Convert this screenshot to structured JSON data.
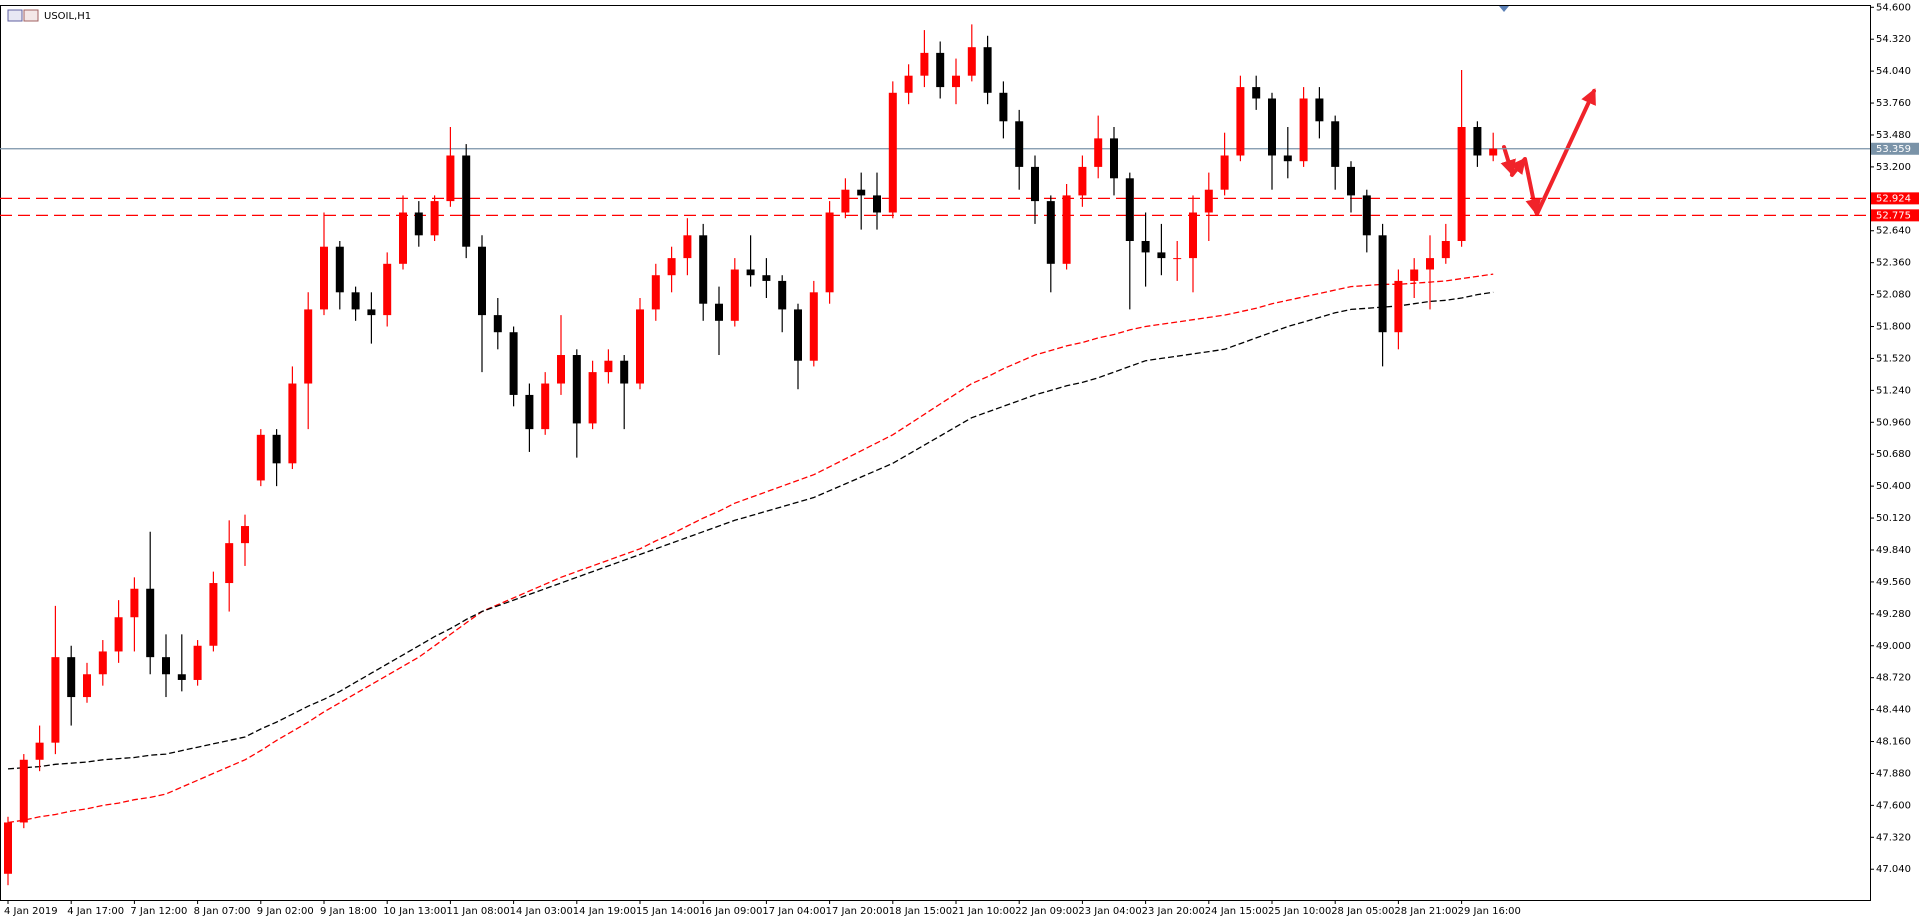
{
  "chart_data": {
    "type": "candlestick",
    "title": "USOIL,H1",
    "up_color": "#ff0000",
    "down_color": "#000000",
    "ylim": [
      46.77,
      54.62
    ],
    "yticks": [
      {
        "value": 47.04,
        "label": "47.040"
      },
      {
        "value": 47.32,
        "label": "47.320"
      },
      {
        "value": 47.6,
        "label": "47.600"
      },
      {
        "value": 47.88,
        "label": "47.880"
      },
      {
        "value": 48.16,
        "label": "48.160"
      },
      {
        "value": 48.44,
        "label": "48.440"
      },
      {
        "value": 48.72,
        "label": "48.720"
      },
      {
        "value": 49.0,
        "label": "49.000"
      },
      {
        "value": 49.28,
        "label": "49.280"
      },
      {
        "value": 49.56,
        "label": "49.560"
      },
      {
        "value": 49.84,
        "label": "49.840"
      },
      {
        "value": 50.12,
        "label": "50.120"
      },
      {
        "value": 50.4,
        "label": "50.400"
      },
      {
        "value": 50.68,
        "label": "50.680"
      },
      {
        "value": 50.96,
        "label": "50.960"
      },
      {
        "value": 51.24,
        "label": "51.240"
      },
      {
        "value": 51.52,
        "label": "51.520"
      },
      {
        "value": 51.8,
        "label": "51.800"
      },
      {
        "value": 52.08,
        "label": "52.080"
      },
      {
        "value": 52.36,
        "label": "52.360"
      },
      {
        "value": 52.64,
        "label": "52.640"
      },
      {
        "value": 52.92,
        "label": "52.920"
      },
      {
        "value": 53.2,
        "label": "53.200"
      },
      {
        "value": 53.48,
        "label": "53.480"
      },
      {
        "value": 53.76,
        "label": "53.760"
      },
      {
        "value": 54.04,
        "label": "54.040"
      },
      {
        "value": 54.32,
        "label": "54.320"
      },
      {
        "value": 54.6,
        "label": "54.600"
      }
    ],
    "categories": [
      "4 Jan 2019",
      null,
      null,
      null,
      "4 Jan 17:00",
      null,
      null,
      null,
      "7 Jan 12:00",
      null,
      null,
      null,
      "8 Jan 07:00",
      null,
      null,
      null,
      "9 Jan 02:00",
      null,
      null,
      null,
      "9 Jan 18:00",
      null,
      null,
      null,
      "10 Jan 13:00",
      null,
      null,
      null,
      "11 Jan 08:00",
      null,
      null,
      null,
      "14 Jan 03:00",
      null,
      null,
      null,
      "14 Jan 19:00",
      null,
      null,
      null,
      "15 Jan 14:00",
      null,
      null,
      null,
      "16 Jan 09:00",
      null,
      null,
      null,
      "17 Jan 04:00",
      null,
      null,
      null,
      "17 Jan 20:00",
      null,
      null,
      null,
      "18 Jan 15:00",
      null,
      null,
      null,
      "21 Jan 10:00",
      null,
      null,
      null,
      "22 Jan 09:00",
      null,
      null,
      null,
      "23 Jan 04:00",
      null,
      null,
      null,
      "23 Jan 20:00",
      null,
      null,
      null,
      "24 Jan 15:00",
      null,
      null,
      null,
      "25 Jan 10:00",
      null,
      null,
      null,
      "28 Jan 05:00",
      null,
      null,
      null,
      "28 Jan 21:00",
      null,
      null,
      null,
      "29 Jan 16:00",
      null,
      null
    ],
    "series": [
      {
        "open": [
          47.0,
          47.45,
          48.0,
          48.15,
          48.9,
          48.55,
          48.75,
          48.95,
          49.25,
          49.5,
          48.9,
          48.75,
          48.7,
          49.0,
          49.55,
          49.9,
          50.45,
          50.85,
          50.6,
          51.3,
          51.95,
          52.5,
          52.1,
          51.95,
          51.9,
          52.35,
          52.8,
          52.6,
          52.9,
          53.3,
          52.5,
          51.9,
          51.75,
          51.2,
          50.9,
          51.3,
          51.55,
          50.95,
          51.4,
          51.5,
          51.3,
          51.95,
          52.25,
          52.4,
          52.6,
          52.0,
          51.85,
          52.3,
          52.25,
          52.2,
          51.95,
          51.5,
          52.1,
          52.8,
          53.0,
          52.95,
          52.8,
          53.85,
          54.0,
          54.2,
          53.9,
          54.0,
          54.25,
          53.85,
          53.6,
          53.2,
          52.9,
          52.35,
          52.95,
          53.2,
          53.45,
          53.1,
          52.55,
          52.45,
          52.4,
          52.4,
          52.8,
          53.0,
          53.3,
          53.9,
          53.8,
          53.3,
          53.25,
          53.8,
          53.6,
          53.2,
          52.95,
          52.6,
          51.75,
          52.2,
          52.3,
          52.4,
          52.55,
          53.55,
          53.3
        ],
        "high": [
          47.5,
          48.05,
          48.3,
          49.35,
          49.0,
          48.85,
          49.05,
          49.4,
          49.6,
          50.0,
          49.1,
          49.1,
          49.05,
          49.65,
          50.1,
          50.15,
          50.9,
          50.9,
          51.45,
          52.1,
          52.8,
          52.55,
          52.15,
          52.1,
          52.45,
          52.95,
          52.9,
          52.95,
          53.55,
          53.4,
          52.6,
          52.05,
          51.8,
          51.3,
          51.4,
          51.9,
          51.6,
          51.5,
          51.6,
          51.55,
          52.05,
          52.35,
          52.5,
          52.75,
          52.7,
          52.15,
          52.4,
          52.6,
          52.4,
          52.25,
          52.0,
          52.2,
          52.9,
          53.1,
          53.15,
          53.15,
          53.95,
          54.1,
          54.4,
          54.3,
          54.15,
          54.45,
          54.35,
          53.95,
          53.7,
          53.3,
          52.95,
          53.05,
          53.3,
          53.65,
          53.55,
          53.15,
          52.8,
          52.7,
          52.55,
          52.95,
          53.15,
          53.5,
          54.0,
          54.0,
          53.85,
          53.55,
          53.9,
          53.9,
          53.65,
          53.25,
          53.0,
          52.7,
          52.3,
          52.4,
          52.6,
          52.7,
          54.05,
          53.6,
          53.5
        ],
        "low": [
          46.9,
          47.4,
          47.9,
          48.05,
          48.3,
          48.5,
          48.65,
          48.85,
          48.95,
          48.75,
          48.55,
          48.6,
          48.65,
          48.95,
          49.3,
          49.7,
          50.4,
          50.4,
          50.55,
          50.9,
          51.9,
          51.95,
          51.85,
          51.65,
          51.8,
          52.3,
          52.5,
          52.55,
          52.85,
          52.4,
          51.4,
          51.6,
          51.1,
          50.7,
          50.85,
          51.2,
          50.65,
          50.9,
          51.3,
          50.9,
          51.25,
          51.85,
          52.1,
          52.25,
          51.85,
          51.55,
          51.8,
          52.15,
          52.05,
          51.75,
          51.25,
          51.45,
          52.0,
          52.75,
          52.65,
          52.65,
          52.75,
          53.75,
          53.9,
          53.8,
          53.75,
          53.95,
          53.75,
          53.45,
          53.0,
          52.7,
          52.1,
          52.3,
          52.85,
          53.1,
          52.95,
          51.95,
          52.15,
          52.25,
          52.2,
          52.1,
          52.55,
          52.95,
          53.25,
          53.7,
          53.0,
          53.1,
          53.2,
          53.45,
          53.0,
          52.8,
          52.45,
          51.45,
          51.6,
          52.05,
          51.95,
          52.35,
          52.5,
          53.2,
          53.25
        ],
        "close": [
          47.45,
          48.0,
          48.15,
          48.9,
          48.55,
          48.75,
          48.95,
          49.25,
          49.5,
          48.9,
          48.75,
          48.7,
          49.0,
          49.55,
          49.9,
          50.05,
          50.85,
          50.6,
          51.3,
          51.95,
          52.5,
          52.1,
          51.95,
          51.9,
          52.35,
          52.8,
          52.6,
          52.9,
          53.3,
          52.5,
          51.9,
          51.75,
          51.2,
          50.9,
          51.3,
          51.55,
          50.95,
          51.4,
          51.5,
          51.3,
          51.95,
          52.25,
          52.4,
          52.6,
          52.0,
          51.85,
          52.3,
          52.25,
          52.2,
          51.95,
          51.5,
          52.1,
          52.8,
          53.0,
          52.95,
          52.8,
          53.85,
          54.0,
          54.2,
          53.9,
          54.0,
          54.25,
          53.85,
          53.6,
          53.2,
          52.9,
          52.35,
          52.95,
          53.2,
          53.45,
          53.1,
          52.55,
          52.45,
          52.4,
          52.4,
          52.8,
          53.0,
          53.3,
          53.9,
          53.8,
          53.3,
          53.25,
          53.8,
          53.6,
          53.2,
          52.95,
          52.6,
          51.75,
          52.2,
          52.3,
          52.4,
          52.55,
          53.55,
          53.3,
          53.36
        ]
      }
    ],
    "ma": [
      {
        "color": "#ff0000",
        "dash": true,
        "values": [
          47.45,
          47.47,
          47.5,
          47.52,
          47.55,
          47.57,
          47.6,
          47.62,
          47.65,
          47.67,
          47.7,
          47.76,
          47.82,
          47.88,
          47.94,
          48.0,
          48.08,
          48.17,
          48.25,
          48.33,
          48.42,
          48.5,
          48.58,
          48.66,
          48.74,
          48.82,
          48.9,
          49.0,
          49.1,
          49.2,
          49.3,
          49.36,
          49.42,
          49.48,
          49.54,
          49.6,
          49.65,
          49.7,
          49.75,
          49.8,
          49.85,
          49.92,
          49.98,
          50.05,
          50.12,
          50.18,
          50.25,
          50.3,
          50.35,
          50.4,
          50.45,
          50.5,
          50.57,
          50.64,
          50.71,
          50.78,
          50.85,
          50.94,
          51.03,
          51.12,
          51.21,
          51.3,
          51.36,
          51.43,
          51.49,
          51.55,
          51.59,
          51.63,
          51.66,
          51.7,
          51.73,
          51.77,
          51.8,
          51.82,
          51.84,
          51.86,
          51.88,
          51.9,
          51.93,
          51.96,
          52.0,
          52.03,
          52.06,
          52.09,
          52.12,
          52.15,
          52.16,
          52.17,
          52.17,
          52.18,
          52.19,
          52.2,
          52.22,
          52.24,
          52.26
        ]
      },
      {
        "color": "#000000",
        "dash": true,
        "values": [
          47.92,
          47.93,
          47.94,
          47.96,
          47.97,
          47.98,
          48.0,
          48.01,
          48.02,
          48.04,
          48.05,
          48.08,
          48.11,
          48.14,
          48.17,
          48.2,
          48.27,
          48.33,
          48.4,
          48.47,
          48.53,
          48.6,
          48.68,
          48.76,
          48.84,
          48.92,
          49.0,
          49.08,
          49.15,
          49.23,
          49.3,
          49.35,
          49.4,
          49.45,
          49.5,
          49.55,
          49.6,
          49.65,
          49.7,
          49.75,
          49.8,
          49.85,
          49.9,
          49.95,
          50.0,
          50.05,
          50.1,
          50.14,
          50.18,
          50.22,
          50.26,
          50.3,
          50.36,
          50.42,
          50.48,
          50.54,
          50.6,
          50.68,
          50.76,
          50.84,
          50.92,
          51.0,
          51.05,
          51.1,
          51.15,
          51.2,
          51.24,
          51.28,
          51.31,
          51.35,
          51.4,
          51.45,
          51.5,
          51.52,
          51.54,
          51.56,
          51.58,
          51.6,
          51.65,
          51.7,
          51.75,
          51.8,
          51.84,
          51.88,
          51.92,
          51.95,
          51.96,
          51.97,
          51.98,
          52.0,
          52.02,
          52.03,
          52.05,
          52.08,
          52.1
        ]
      }
    ],
    "hlines": [
      {
        "value": 53.359,
        "color": "#7a93a8",
        "dash": false
      },
      {
        "value": 52.924,
        "color": "#ff0000",
        "dash": true
      },
      {
        "value": 52.775,
        "color": "#ff0000",
        "dash": true
      }
    ],
    "grid": false
  }
}
